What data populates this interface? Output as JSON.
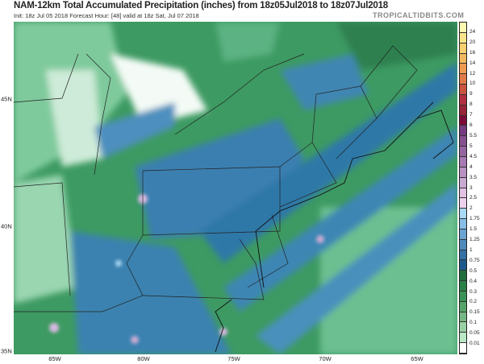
{
  "header": {
    "title": "NAM-12km Total Accumulated Precipitation (inches) from 18z05Jul2018 to 18z07Jul2018",
    "subtitle": "Init: 18z Jul 05 2018   Forecast Hour: [48]   valid at 18z Sat, Jul 07 2018",
    "brand": "TROPICALTIDBITS.COM"
  },
  "map": {
    "lat_labels": [
      "45N",
      "40N",
      "35N"
    ],
    "lon_labels": [
      "85W",
      "80W",
      "75W",
      "70W",
      "65W"
    ]
  },
  "legend": {
    "labels": [
      "24",
      "20",
      "16",
      "14",
      "12",
      "10",
      "9",
      "8",
      "7",
      "6",
      "5.5",
      "5",
      "4.5",
      "4",
      "3.5",
      "3",
      "2.5",
      "2",
      "1.75",
      "1.5",
      "1.25",
      "1",
      "0.75",
      "0.5",
      "0.4",
      "0.3",
      "0.2",
      "0.15",
      "0.1",
      "0.05",
      "0.01"
    ],
    "colors": [
      "#fff8b0",
      "#fbe58a",
      "#f8d070",
      "#f3b85e",
      "#ee9a50",
      "#e07a48",
      "#c95440",
      "#b03040",
      "#962436",
      "#7c0a38",
      "#763a80",
      "#855090",
      "#9565a0",
      "#a77ab2",
      "#b892c2",
      "#c9aad2",
      "#e2c2e2",
      "#ecd0ec",
      "#a8d8f4",
      "#86bee6",
      "#6aa4d2",
      "#4e8abc",
      "#3571a4",
      "#1c5a8c",
      "#1e6e3e",
      "#2a8048",
      "#3a9256",
      "#54a468",
      "#76b884",
      "#98d0a4",
      "#b8e8c6",
      "#ffffff"
    ]
  }
}
